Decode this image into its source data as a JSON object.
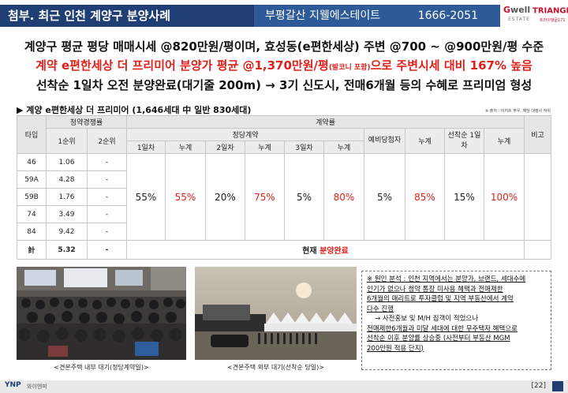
{
  "header": {
    "title": "첨부. 최근 인천 계양구 분양사례",
    "project": "부평갈산 지웰에스테이트",
    "phone": "1666-2051",
    "logo_gwell": "well",
    "logo_gwell_prefix": "G",
    "logo_gwell_sub": "ESTATE",
    "logo_triangle": "TRIANGLE",
    "logo_triangle_num": "171",
    "logo_triangle_sub": "트라이앵글171"
  },
  "summary": {
    "line1": "계양구 평균 평당 매매시세 @820만원/평이며, 효성동(e편한세상) 주변 @700 ~ @900만원/평 수준",
    "line2_a": "계약 e편한세상 더 프리미어 분양가 평균 @1,370만원/평",
    "line2_small": "(발코니 포함)",
    "line2_b": "으로 주변시세 대비 167% 높음",
    "line3": "선착순 1일차 오전 분양완료(대기줄 200m) → 3기 신도시, 전매6개월 등의 수혜로 프리미엄 형성"
  },
  "table_title": "▶ 계양 e편한세상 더 프리미어 (1,646세대 中 일반 830세대)",
  "source_note": "※ 출처 : 이지트 푸우, 해당 대행사 작위",
  "table": {
    "h_type": "타입",
    "h_comp": "청약경쟁률",
    "h_contract": "계약률",
    "h_regular": "정당계약",
    "h_note": "비고",
    "h_rank1": "1순위",
    "h_rank2": "2순위",
    "h_day1": "1일차",
    "h_cum": "누계",
    "h_day2": "2일차",
    "h_day3": "3일차",
    "h_reserve": "예비당첨자",
    "h_first": "선착순 1일차",
    "rows": [
      {
        "type": "46",
        "r1": "1.06",
        "r2": "-"
      },
      {
        "type": "59A",
        "r1": "4.28",
        "r2": "-"
      },
      {
        "type": "59B",
        "r1": "1.76",
        "r2": "-"
      },
      {
        "type": "74",
        "r1": "3.49",
        "r2": "-"
      },
      {
        "type": "84",
        "r1": "9.42",
        "r2": "-"
      }
    ],
    "contract": {
      "day1": "55%",
      "cum1": "55%",
      "day2": "20%",
      "cum2": "75%",
      "day3": "5%",
      "cum3": "80%",
      "reserve": "5%",
      "cum4": "85%",
      "first": "15%",
      "cum5": "100%"
    },
    "total": {
      "type": "計",
      "r1": "5.32",
      "r2": "-",
      "status_a": "현재 ",
      "status_b": "분양완료"
    }
  },
  "note": {
    "l1": "※ 원인 분석 : 인천 지역에서는 분양가, 브랜드, 세대수에",
    "l2": "인기가 없으나 청약 통장 미사용 혜택과 전매제한",
    "l3": "6개월의 매리트로 투자클럽 및 지역 부동산에서 계약",
    "l4": "다수 진행",
    "l5": "→ 사전홍보 및 M/H 집객이 적었으나",
    "l6": "전매제한6개월과 미달 세대에 대한 무주택자 혜택으로",
    "l7": "선착순 이후 분양률 상승중 (사전부터 부동산 MGM",
    "l8": "200만원 적용 단지)"
  },
  "captions": {
    "photo1": "<견본주택 내부 대기(정당계약일)>",
    "photo2": "<견본주택 외부 대기(선착순 당일)>"
  },
  "footer": {
    "brand": "YNP",
    "brand_sub": "와이엔피",
    "page": "[22]"
  }
}
